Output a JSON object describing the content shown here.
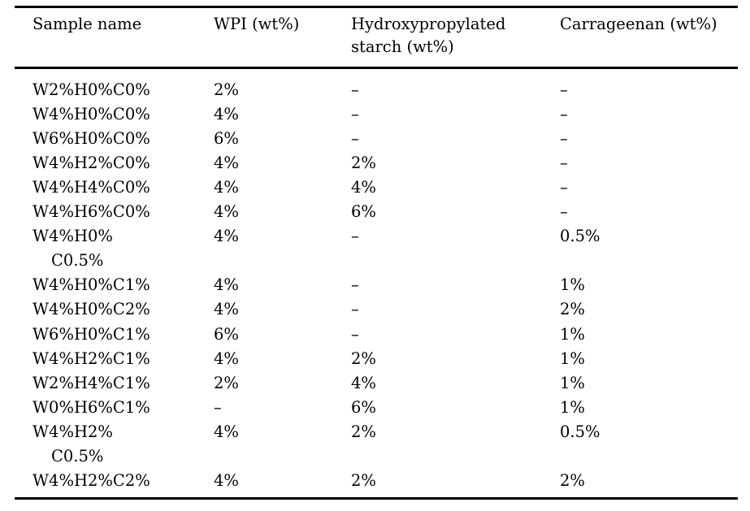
{
  "table": {
    "columns": [
      {
        "key": "sample",
        "label": "Sample name"
      },
      {
        "key": "wpi",
        "label": "WPI (wt%)"
      },
      {
        "key": "starch",
        "label": "Hydroxypropylated\nstarch (wt%)"
      },
      {
        "key": "carrageenan",
        "label": "Carrageenan (wt%)"
      }
    ],
    "empty_value_symbol": "–",
    "rows": [
      {
        "sample": "W2%H0%C0%",
        "wpi": "2%",
        "starch": "–",
        "carrageenan": "–"
      },
      {
        "sample": "W4%H0%C0%",
        "wpi": "4%",
        "starch": "–",
        "carrageenan": "–"
      },
      {
        "sample": "W6%H0%C0%",
        "wpi": "6%",
        "starch": "–",
        "carrageenan": "–"
      },
      {
        "sample": "W4%H2%C0%",
        "wpi": "4%",
        "starch": "2%",
        "carrageenan": "–"
      },
      {
        "sample": "W4%H4%C0%",
        "wpi": "4%",
        "starch": "4%",
        "carrageenan": "–"
      },
      {
        "sample": "W4%H6%C0%",
        "wpi": "4%",
        "starch": "6%",
        "carrageenan": "–"
      },
      {
        "sample": "W4%H0%\nC0.5%",
        "wpi": "4%",
        "starch": "–",
        "carrageenan": "0.5%"
      },
      {
        "sample": "W4%H0%C1%",
        "wpi": "4%",
        "starch": "–",
        "carrageenan": "1%"
      },
      {
        "sample": "W4%H0%C2%",
        "wpi": "4%",
        "starch": "–",
        "carrageenan": "2%"
      },
      {
        "sample": "W6%H0%C1%",
        "wpi": "6%",
        "starch": "–",
        "carrageenan": "1%"
      },
      {
        "sample": "W4%H2%C1%",
        "wpi": "4%",
        "starch": "2%",
        "carrageenan": "1%"
      },
      {
        "sample": "W2%H4%C1%",
        "wpi": "2%",
        "starch": "4%",
        "carrageenan": "1%"
      },
      {
        "sample": "W0%H6%C1%",
        "wpi": "–",
        "starch": "6%",
        "carrageenan": "1%"
      },
      {
        "sample": "W4%H2%\nC0.5%",
        "wpi": "4%",
        "starch": "2%",
        "carrageenan": "0.5%"
      },
      {
        "sample": "W4%H2%C2%",
        "wpi": "4%",
        "starch": "2%",
        "carrageenan": "2%"
      }
    ],
    "text_color": "#000000",
    "rule_color": "#000000"
  }
}
